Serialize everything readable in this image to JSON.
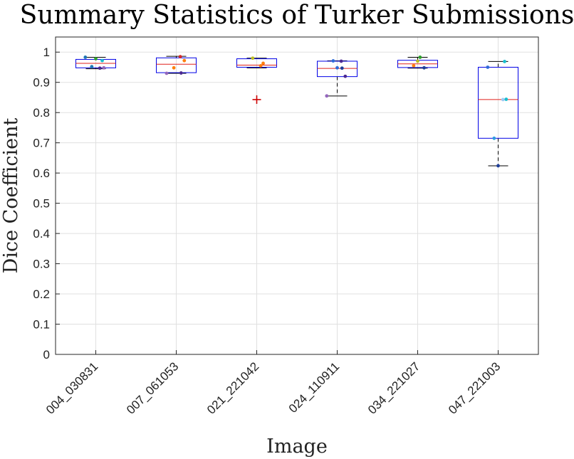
{
  "chart_data": {
    "type": "box",
    "title": "Summary Statistics of Turker Submissions",
    "xlabel": "Image",
    "ylabel": "Dice Coefficient",
    "ylim": [
      0,
      1.05
    ],
    "yticks": [
      0,
      0.1,
      0.2,
      0.3,
      0.4,
      0.5,
      0.6,
      0.7,
      0.8,
      0.9,
      1
    ],
    "ytick_labels": [
      "0",
      "0.1",
      "0.2",
      "0.3",
      "0.4",
      "0.5",
      "0.6",
      "0.7",
      "0.8",
      "0.9",
      "1"
    ],
    "grid": true,
    "categories": [
      "004_030831",
      "007_061053",
      "021_221042",
      "024_110911",
      "034_221027",
      "047_221003"
    ],
    "boxes": [
      {
        "whisker_low": 0.945,
        "q1": 0.948,
        "median": 0.963,
        "q3": 0.976,
        "whisker_high": 0.983,
        "outliers": []
      },
      {
        "whisker_low": 0.93,
        "q1": 0.932,
        "median": 0.96,
        "q3": 0.981,
        "whisker_high": 0.986,
        "outliers": []
      },
      {
        "whisker_low": 0.948,
        "q1": 0.95,
        "median": 0.957,
        "q3": 0.978,
        "whisker_high": 0.98,
        "outliers": [
          0.843
        ]
      },
      {
        "whisker_low": 0.855,
        "q1": 0.919,
        "median": 0.946,
        "q3": 0.97,
        "whisker_high": 0.971,
        "outliers": []
      },
      {
        "whisker_low": 0.947,
        "q1": 0.949,
        "median": 0.961,
        "q3": 0.973,
        "whisker_high": 0.983,
        "outliers": []
      },
      {
        "whisker_low": 0.624,
        "q1": 0.715,
        "median": 0.843,
        "q3": 0.95,
        "whisker_high": 0.969,
        "outliers": []
      }
    ],
    "points": [
      [
        {
          "offset": -0.13,
          "value": 0.983,
          "color": "#1f77b4"
        },
        {
          "offset": 0.0,
          "value": 0.978,
          "color": "#2ca02c"
        },
        {
          "offset": 0.08,
          "value": 0.972,
          "color": "#17becf"
        },
        {
          "offset": -0.05,
          "value": 0.952,
          "color": "#1f77b4"
        },
        {
          "offset": 0.05,
          "value": 0.947,
          "color": "#4b2991"
        },
        {
          "offset": 0.1,
          "value": 0.948,
          "color": "#9467bd"
        }
      ],
      [
        {
          "offset": 0.05,
          "value": 0.985,
          "color": "#d62728"
        },
        {
          "offset": 0.1,
          "value": 0.972,
          "color": "#ff7f0e"
        },
        {
          "offset": -0.03,
          "value": 0.948,
          "color": "#ff7f0e"
        },
        {
          "offset": -0.12,
          "value": 0.93,
          "color": "#9467bd"
        },
        {
          "offset": 0.06,
          "value": 0.931,
          "color": "#4b2991"
        }
      ],
      [
        {
          "offset": -0.05,
          "value": 0.98,
          "color": "#bcbd22"
        },
        {
          "offset": 0.08,
          "value": 0.963,
          "color": "#ff7f0e"
        },
        {
          "offset": 0.05,
          "value": 0.955,
          "color": "#ff7f0e"
        }
      ],
      [
        {
          "offset": -0.05,
          "value": 0.971,
          "color": "#2f6bd8"
        },
        {
          "offset": 0.05,
          "value": 0.97,
          "color": "#4b2991"
        },
        {
          "offset": 0.0,
          "value": 0.948,
          "color": "#2f6bd8"
        },
        {
          "offset": 0.06,
          "value": 0.947,
          "color": "#1f3f99"
        },
        {
          "offset": 0.1,
          "value": 0.92,
          "color": "#4b2991"
        },
        {
          "offset": -0.13,
          "value": 0.855,
          "color": "#9467bd"
        }
      ],
      [
        {
          "offset": 0.03,
          "value": 0.983,
          "color": "#2ca02c"
        },
        {
          "offset": 0.0,
          "value": 0.97,
          "color": "#bcbd22"
        },
        {
          "offset": -0.05,
          "value": 0.955,
          "color": "#ff7f0e"
        },
        {
          "offset": 0.08,
          "value": 0.948,
          "color": "#1f3f99"
        }
      ],
      [
        {
          "offset": 0.08,
          "value": 0.969,
          "color": "#17becf"
        },
        {
          "offset": -0.13,
          "value": 0.95,
          "color": "#2f6bd8"
        },
        {
          "offset": 0.06,
          "value": 0.843,
          "color": "#9ec9f2"
        },
        {
          "offset": 0.1,
          "value": 0.844,
          "color": "#17becf"
        },
        {
          "offset": -0.05,
          "value": 0.715,
          "color": "#2f9ce0"
        },
        {
          "offset": 0.0,
          "value": 0.624,
          "color": "#1f3f99"
        }
      ]
    ],
    "box_color": "#0000e6",
    "median_color": "#e0201b",
    "outlier_color": "#cc0000",
    "whisker_color": "#000000"
  }
}
